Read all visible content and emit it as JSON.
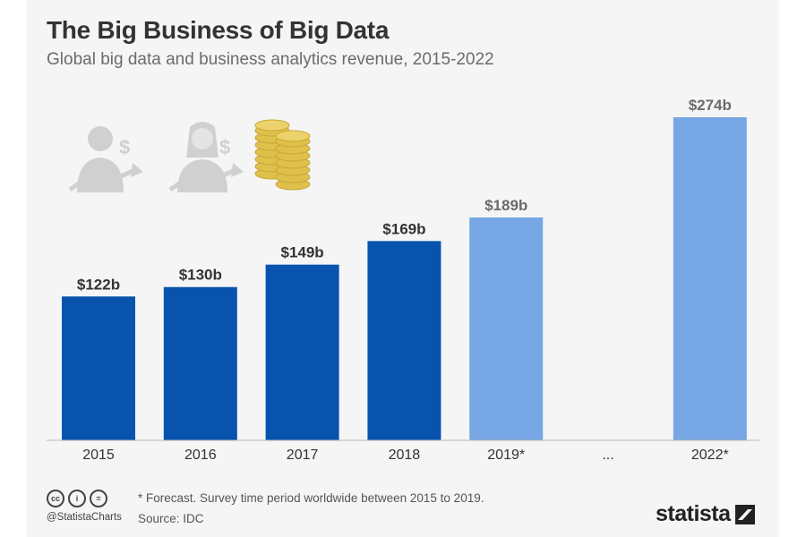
{
  "header": {
    "title": "The Big Business of Big Data",
    "subtitle": "Global big data and business analytics revenue, 2015-2022"
  },
  "chart_data": {
    "type": "bar",
    "categories": [
      "2015",
      "2016",
      "2017",
      "2018",
      "2019*",
      "...",
      "2022*"
    ],
    "values": [
      122,
      130,
      149,
      169,
      189,
      null,
      274
    ],
    "value_labels": [
      "$122b",
      "$130b",
      "$149b",
      "$169b",
      "$189b",
      "",
      "$274b"
    ],
    "forecast": [
      false,
      false,
      false,
      false,
      true,
      false,
      true
    ],
    "unit": "billion U.S. dollars",
    "ylim": [
      0,
      274
    ],
    "grid": false,
    "legend": "none"
  },
  "colors": {
    "actual": "#0753ad",
    "forecast": "#76a6e3",
    "label_actual": "#333333",
    "label_forecast": "#6b6b6b",
    "baseline": "#bbbbbb",
    "decor": "#d0d0d0",
    "coin": "#dfc04a"
  },
  "icons": [
    "businessman-dollar-growth-icon",
    "businesswoman-dollar-growth-icon",
    "coins-stack-icon"
  ],
  "footer": {
    "note": "* Forecast. Survey time period worldwide between 2015 to 2019.",
    "source": "Source: IDC",
    "handle": "@StatistaCharts",
    "license_icons": [
      "cc-icon",
      "attribution-icon",
      "no-derivatives-icon"
    ],
    "license_glyphs": [
      "cc",
      "i",
      "="
    ],
    "brand": "statista"
  }
}
